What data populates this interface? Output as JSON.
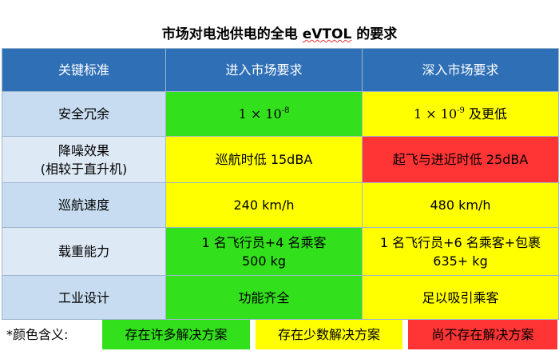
{
  "title_prefix": "市场对电池供电的全电 ",
  "title_underlined": "eVTOL",
  "title_suffix": " 的要求",
  "header": {
    "col1": "关键标准",
    "col2": "进入市场要求",
    "col3": "深入市场要求"
  },
  "rows": [
    {
      "label": "安全冗余",
      "entry_base": "1 × 10",
      "entry_exp": "-8",
      "deep_base": "1 × 10",
      "deep_exp": "-9",
      "deep_suffix": " 及更低"
    },
    {
      "label_line1": "降噪效果",
      "label_line2": "(相较于直升机)",
      "entry": "巡航时低 15dBA",
      "deep": "起飞与进近时低 25dBA"
    },
    {
      "label": "巡航速度",
      "entry": "240 km/h",
      "deep": "480 km/h"
    },
    {
      "label": "载重能力",
      "entry_line1": "1 名飞行员+4 名乘客",
      "entry_line2": "500 kg",
      "deep_line1": "1 名飞行员+6 名乘客+包裹",
      "deep_line2": "635+ kg"
    },
    {
      "label": "工业设计",
      "entry": "功能齐全",
      "deep": "足以吸引乘客"
    }
  ],
  "legend": {
    "label": "*颜色含义:",
    "green": "存在许多解决方案",
    "yellow": "存在少数解决方案",
    "red": "尚不存在解决方案"
  },
  "colors": {
    "header_blue": "#2f6fb6",
    "label_blue": "#c7dcf0",
    "green": "#33e01c",
    "yellow": "#ffff00",
    "red": "#ff3434"
  }
}
